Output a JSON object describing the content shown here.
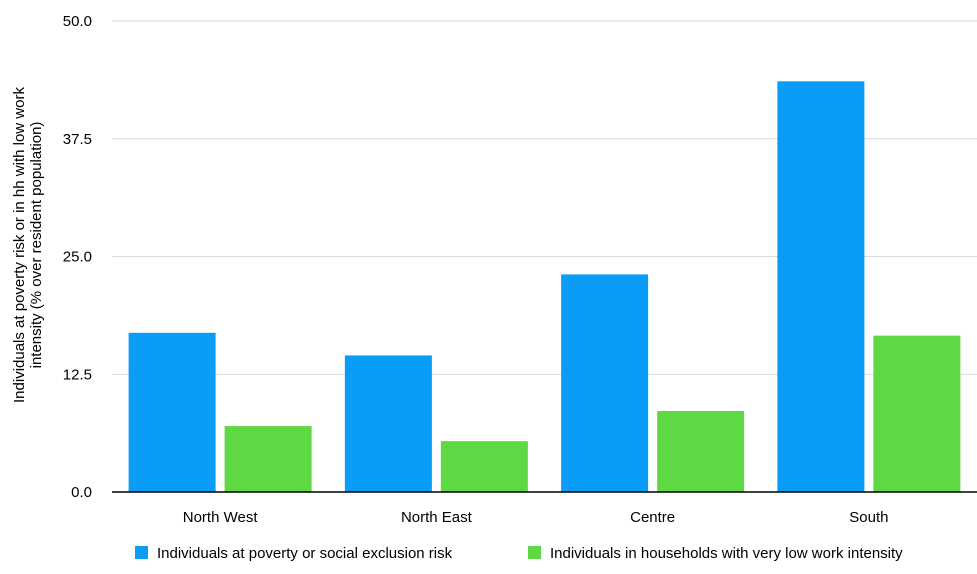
{
  "chart_data": {
    "type": "bar",
    "title": "",
    "xlabel": "",
    "ylabel_lines": [
      "Individuals at poverty risk or in hh with low work",
      "intensity (% over resident population)"
    ],
    "categories": [
      "North West",
      "North East",
      "Centre",
      "South"
    ],
    "series": [
      {
        "name": "Individuals at poverty or social exclusion risk",
        "color": "#0a9df7",
        "values": [
          16.9,
          14.5,
          23.1,
          43.6
        ]
      },
      {
        "name": "Individuals in households with very low work intensity",
        "color": "#5fd943",
        "values": [
          7.0,
          5.4,
          8.6,
          16.6
        ]
      }
    ],
    "yticks": [
      "0.0",
      "12.5",
      "25.0",
      "37.5",
      "50.0"
    ],
    "ylim": [
      0,
      50
    ],
    "grid": true,
    "legend_position": "bottom"
  }
}
